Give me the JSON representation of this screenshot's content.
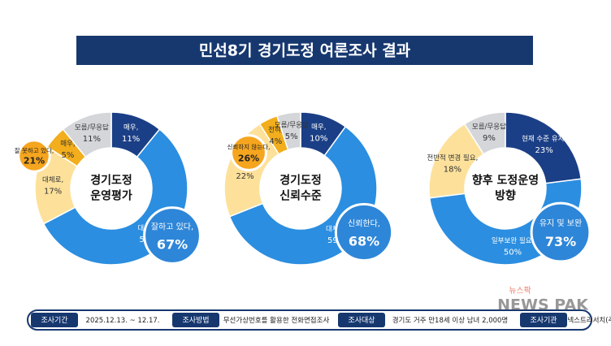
{
  "header": {
    "title": "민선8기 경기도정 여론조사 결과"
  },
  "chart_data": [
    {
      "type": "pie",
      "center_label": [
        "경기도정",
        "운영평가"
      ],
      "categories": [
        "매우,",
        "대체로,",
        "대체로,",
        "매우,",
        "모름/무응답"
      ],
      "values": [
        11,
        57,
        17,
        5,
        11
      ],
      "value_labels": [
        "11%",
        "57%",
        "17%",
        "5%",
        "11%"
      ],
      "colors": [
        "#1b3f86",
        "#2b8ee0",
        "#fde19b",
        "#f2ae1c",
        "#d4d6da"
      ],
      "summary": {
        "names": [
          "잘하고 있다,",
          "잘 못하고 있다,"
        ],
        "values": [
          67,
          21
        ],
        "value_labels": [
          "67%",
          "21%"
        ],
        "colors": [
          "#2e86d8",
          "#f5a51e"
        ]
      }
    },
    {
      "type": "pie",
      "center_label": [
        "경기도정",
        "신뢰수준"
      ],
      "categories": [
        "매우,",
        "대체로,",
        "별로,",
        "전혀,",
        "모름/무응답"
      ],
      "values": [
        10,
        59,
        22,
        4,
        5
      ],
      "value_labels": [
        "10%",
        "59%",
        "22%",
        "4%",
        "5%"
      ],
      "colors": [
        "#1b3f86",
        "#2b8ee0",
        "#fde19b",
        "#f2ae1c",
        "#d4d6da"
      ],
      "summary": {
        "names": [
          "신뢰한다,",
          "신뢰하지 않는다,"
        ],
        "values": [
          68,
          26
        ],
        "value_labels": [
          "68%",
          "26%"
        ],
        "colors": [
          "#2e86d8",
          "#f5a51e"
        ]
      }
    },
    {
      "type": "pie",
      "center_label": [
        "향후 도정운영",
        "방향"
      ],
      "categories": [
        "현재 수준 유지,",
        "일부보완 필요,",
        "전반적 변경 필요,",
        "모름/무응답"
      ],
      "values": [
        23,
        50,
        18,
        9
      ],
      "value_labels": [
        "23%",
        "50%",
        "18%",
        "9%"
      ],
      "colors": [
        "#1b3f86",
        "#2b8ee0",
        "#fde19b",
        "#d4d6da"
      ],
      "summary": {
        "names": [
          "유지 및 보완"
        ],
        "values": [
          73
        ],
        "value_labels": [
          "73%"
        ],
        "colors": [
          "#2e86d8"
        ]
      }
    }
  ],
  "footer": {
    "items": [
      {
        "label": "조사기간",
        "text": "2025.12.13. ~ 12.17."
      },
      {
        "label": "조사방법",
        "text": "무선가상번호를 활용한 전화면접조사"
      },
      {
        "label": "조사대상",
        "text": "경기도 거주 만18세 이상 남녀 2,000명"
      },
      {
        "label": "조사기관",
        "text": "넥스트리서치(주)"
      }
    ]
  },
  "watermark": [
    "뉴스팍",
    "NEWS PAK"
  ]
}
